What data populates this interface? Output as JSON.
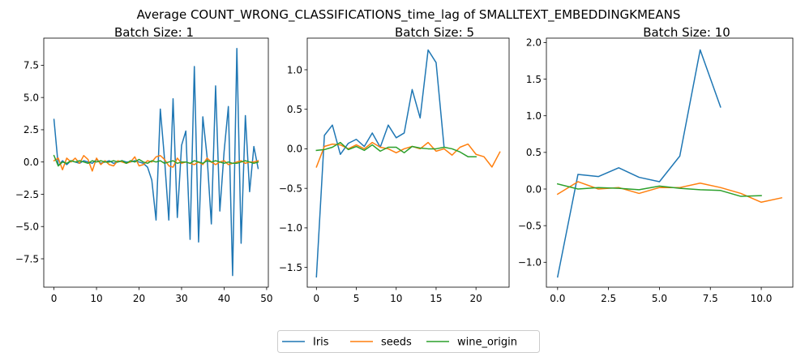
{
  "figure": {
    "suptitle": "Average COUNT_WRONG_CLASSIFICATIONS_time_lag of SMALLTEXT_EMBEDDINGKMEANS"
  },
  "legend": {
    "placement": "bottom-center",
    "entries": [
      {
        "name": "Iris",
        "color": "#1f77b4"
      },
      {
        "name": "seeds",
        "color": "#ff7f0e"
      },
      {
        "name": "wine_origin",
        "color": "#2ca02c"
      }
    ]
  },
  "chart_data": [
    {
      "type": "line",
      "title": "Batch Size: 1",
      "xlabel": "",
      "ylabel": "",
      "xlim": [
        -2.4,
        50.4
      ],
      "ylim": [
        -9.7,
        9.6
      ],
      "xticks": [
        0,
        10,
        20,
        30,
        40,
        50
      ],
      "xtick_labels": [
        "0",
        "10",
        "20",
        "30",
        "40",
        "50"
      ],
      "yticks": [
        -7.5,
        -5.0,
        -2.5,
        0.0,
        2.5,
        5.0,
        7.5
      ],
      "ytick_labels": [
        "−7.5",
        "−5.0",
        "−2.5",
        "0.0",
        "2.5",
        "5.0",
        "7.5"
      ],
      "grid": false,
      "series": [
        {
          "name": "Iris",
          "color": "#1f77b4",
          "x": [
            0,
            1,
            2,
            3,
            4,
            5,
            6,
            7,
            8,
            9,
            10,
            11,
            12,
            13,
            14,
            15,
            16,
            17,
            18,
            19,
            20,
            21,
            22,
            23,
            24,
            25,
            26,
            27,
            28,
            29,
            30,
            31,
            32,
            33,
            34,
            35,
            36,
            37,
            38,
            39,
            40,
            41,
            42,
            43,
            44,
            45,
            46,
            47,
            48
          ],
          "y": [
            3.3,
            -0.3,
            0.1,
            -0.2,
            0.1,
            0.0,
            -0.1,
            0.1,
            0.0,
            -0.1,
            0.2,
            -0.1,
            0.0,
            0.1,
            -0.1,
            0.0,
            0.1,
            0.0,
            0.0,
            0.1,
            0.0,
            -0.1,
            -0.4,
            -1.4,
            -4.5,
            4.1,
            0.2,
            -4.5,
            4.9,
            -4.3,
            1.3,
            2.4,
            -6.0,
            7.4,
            -6.2,
            3.5,
            0.4,
            -4.8,
            5.9,
            -3.8,
            0.8,
            4.3,
            -8.8,
            8.8,
            -6.3,
            3.6,
            -2.3,
            1.2,
            -0.5
          ]
        },
        {
          "name": "seeds",
          "color": "#ff7f0e",
          "x": [
            0,
            1,
            2,
            3,
            4,
            5,
            6,
            7,
            8,
            9,
            10,
            11,
            12,
            13,
            14,
            15,
            16,
            17,
            18,
            19,
            20,
            21,
            22,
            23,
            24,
            25,
            26,
            27,
            28,
            29,
            30,
            31,
            32,
            33,
            34,
            35,
            36,
            37,
            38,
            39,
            40,
            41,
            42,
            43,
            44,
            45,
            46,
            47,
            48
          ],
          "y": [
            0.1,
            0.3,
            -0.6,
            0.3,
            0.0,
            0.3,
            -0.1,
            0.5,
            0.2,
            -0.7,
            0.3,
            -0.2,
            0.1,
            -0.2,
            -0.3,
            0.1,
            0.0,
            -0.1,
            0.0,
            0.4,
            -0.3,
            -0.2,
            0.1,
            0.0,
            0.4,
            0.5,
            0.2,
            -0.3,
            -0.4,
            0.3,
            -0.1,
            0.0,
            -0.1,
            -0.2,
            0.0,
            -0.2,
            0.3,
            0.0,
            -0.2,
            0.0,
            0.1,
            -0.2,
            -0.1,
            0.0,
            0.1,
            -0.1,
            0.0,
            0.0,
            0.1
          ]
        },
        {
          "name": "wine_origin",
          "color": "#2ca02c",
          "x": [
            0,
            1,
            2,
            3,
            4,
            5,
            6,
            7,
            8,
            9,
            10,
            11,
            12,
            13,
            14,
            15,
            16,
            17,
            18,
            19,
            20,
            21,
            22,
            23,
            24,
            25,
            26,
            27,
            28,
            29,
            30,
            31,
            32,
            33,
            34,
            35,
            36,
            37,
            38,
            39,
            40,
            41,
            42,
            43,
            44,
            45,
            46,
            47,
            48
          ],
          "y": [
            0.5,
            -0.3,
            0.0,
            -0.1,
            0.1,
            0.0,
            0.1,
            0.0,
            -0.1,
            0.1,
            0.0,
            0.1,
            0.0,
            0.0,
            0.1,
            0.0,
            0.1,
            -0.1,
            0.1,
            0.0,
            0.2,
            0.0,
            -0.1,
            0.1,
            0.0,
            0.1,
            -0.1,
            0.0,
            0.1,
            -0.1,
            0.0,
            0.0,
            -0.1,
            0.1,
            0.0,
            -0.1,
            0.1,
            0.0,
            0.1,
            0.0,
            -0.1,
            0.0,
            -0.1,
            -0.1,
            0.0,
            0.1,
            0.0,
            -0.1,
            0.0
          ]
        }
      ]
    },
    {
      "type": "line",
      "title": "Batch Size: 5",
      "xlabel": "",
      "ylabel": "",
      "xlim": [
        -1.15,
        24.15
      ],
      "ylim": [
        -1.75,
        1.4
      ],
      "xticks": [
        0,
        5,
        10,
        15,
        20
      ],
      "xtick_labels": [
        "0",
        "5",
        "10",
        "15",
        "20"
      ],
      "yticks": [
        -1.5,
        -1.0,
        -0.5,
        0.0,
        0.5,
        1.0
      ],
      "ytick_labels": [
        "−1.5",
        "−1.0",
        "−0.5",
        "0.0",
        "0.5",
        "1.0"
      ],
      "grid": false,
      "series": [
        {
          "name": "Iris",
          "color": "#1f77b4",
          "x": [
            0,
            1,
            2,
            3,
            4,
            5,
            6,
            7,
            8,
            9,
            10,
            11,
            12,
            13,
            14,
            15,
            16
          ],
          "y": [
            -1.62,
            0.17,
            0.3,
            -0.07,
            0.07,
            0.12,
            0.03,
            0.2,
            0.02,
            0.3,
            0.14,
            0.2,
            0.75,
            0.39,
            1.25,
            1.09,
            0.02
          ]
        },
        {
          "name": "seeds",
          "color": "#ff7f0e",
          "x": [
            0,
            1,
            2,
            3,
            4,
            5,
            6,
            7,
            8,
            9,
            10,
            11,
            12,
            13,
            14,
            15,
            16,
            17,
            18,
            19,
            20,
            21,
            22,
            23
          ],
          "y": [
            -0.23,
            0.03,
            0.06,
            0.05,
            0.0,
            0.05,
            0.0,
            0.08,
            0.02,
            0.0,
            -0.05,
            0.0,
            0.03,
            0.0,
            0.08,
            -0.03,
            0.0,
            -0.08,
            0.02,
            0.06,
            -0.07,
            -0.1,
            -0.23,
            -0.04
          ]
        },
        {
          "name": "wine_origin",
          "color": "#2ca02c",
          "x": [
            0,
            1,
            2,
            3,
            4,
            5,
            6,
            7,
            8,
            9,
            10,
            11,
            12,
            13,
            14,
            15,
            16,
            17,
            18,
            19,
            20
          ],
          "y": [
            -0.02,
            -0.01,
            0.02,
            0.08,
            -0.01,
            0.03,
            -0.02,
            0.05,
            -0.03,
            0.02,
            0.02,
            -0.05,
            0.03,
            0.01,
            0.0,
            0.0,
            0.02,
            0.0,
            -0.04,
            -0.1,
            -0.1
          ]
        }
      ]
    },
    {
      "type": "line",
      "title": "Batch Size: 10",
      "xlabel": "",
      "ylabel": "",
      "xlim": [
        -0.55,
        11.55
      ],
      "ylim": [
        -1.34,
        2.06
      ],
      "xticks": [
        0.0,
        2.5,
        5.0,
        7.5,
        10.0
      ],
      "xtick_labels": [
        "0.0",
        "2.5",
        "5.0",
        "7.5",
        "10.0"
      ],
      "yticks": [
        -1.0,
        -0.5,
        0.0,
        0.5,
        1.0,
        1.5,
        2.0
      ],
      "ytick_labels": [
        "−1.0",
        "−0.5",
        "0.0",
        "0.5",
        "1.0",
        "1.5",
        "2.0"
      ],
      "grid": false,
      "series": [
        {
          "name": "Iris",
          "color": "#1f77b4",
          "x": [
            0,
            1,
            2,
            3,
            4,
            5,
            6,
            7,
            8
          ],
          "y": [
            -1.2,
            0.2,
            0.17,
            0.29,
            0.16,
            0.1,
            0.45,
            1.9,
            1.12
          ]
        },
        {
          "name": "seeds",
          "color": "#ff7f0e",
          "x": [
            0,
            1,
            2,
            3,
            4,
            5,
            6,
            7,
            8,
            9,
            10,
            11
          ],
          "y": [
            -0.07,
            0.1,
            0.0,
            0.02,
            -0.06,
            0.02,
            0.02,
            0.08,
            0.02,
            -0.06,
            -0.18,
            -0.12
          ]
        },
        {
          "name": "wine_origin",
          "color": "#2ca02c",
          "x": [
            0,
            1,
            2,
            3,
            4,
            5,
            6,
            7,
            8,
            9,
            10
          ],
          "y": [
            0.07,
            0.0,
            0.02,
            0.01,
            -0.01,
            0.04,
            0.01,
            -0.01,
            -0.02,
            -0.1,
            -0.09
          ]
        }
      ]
    }
  ]
}
